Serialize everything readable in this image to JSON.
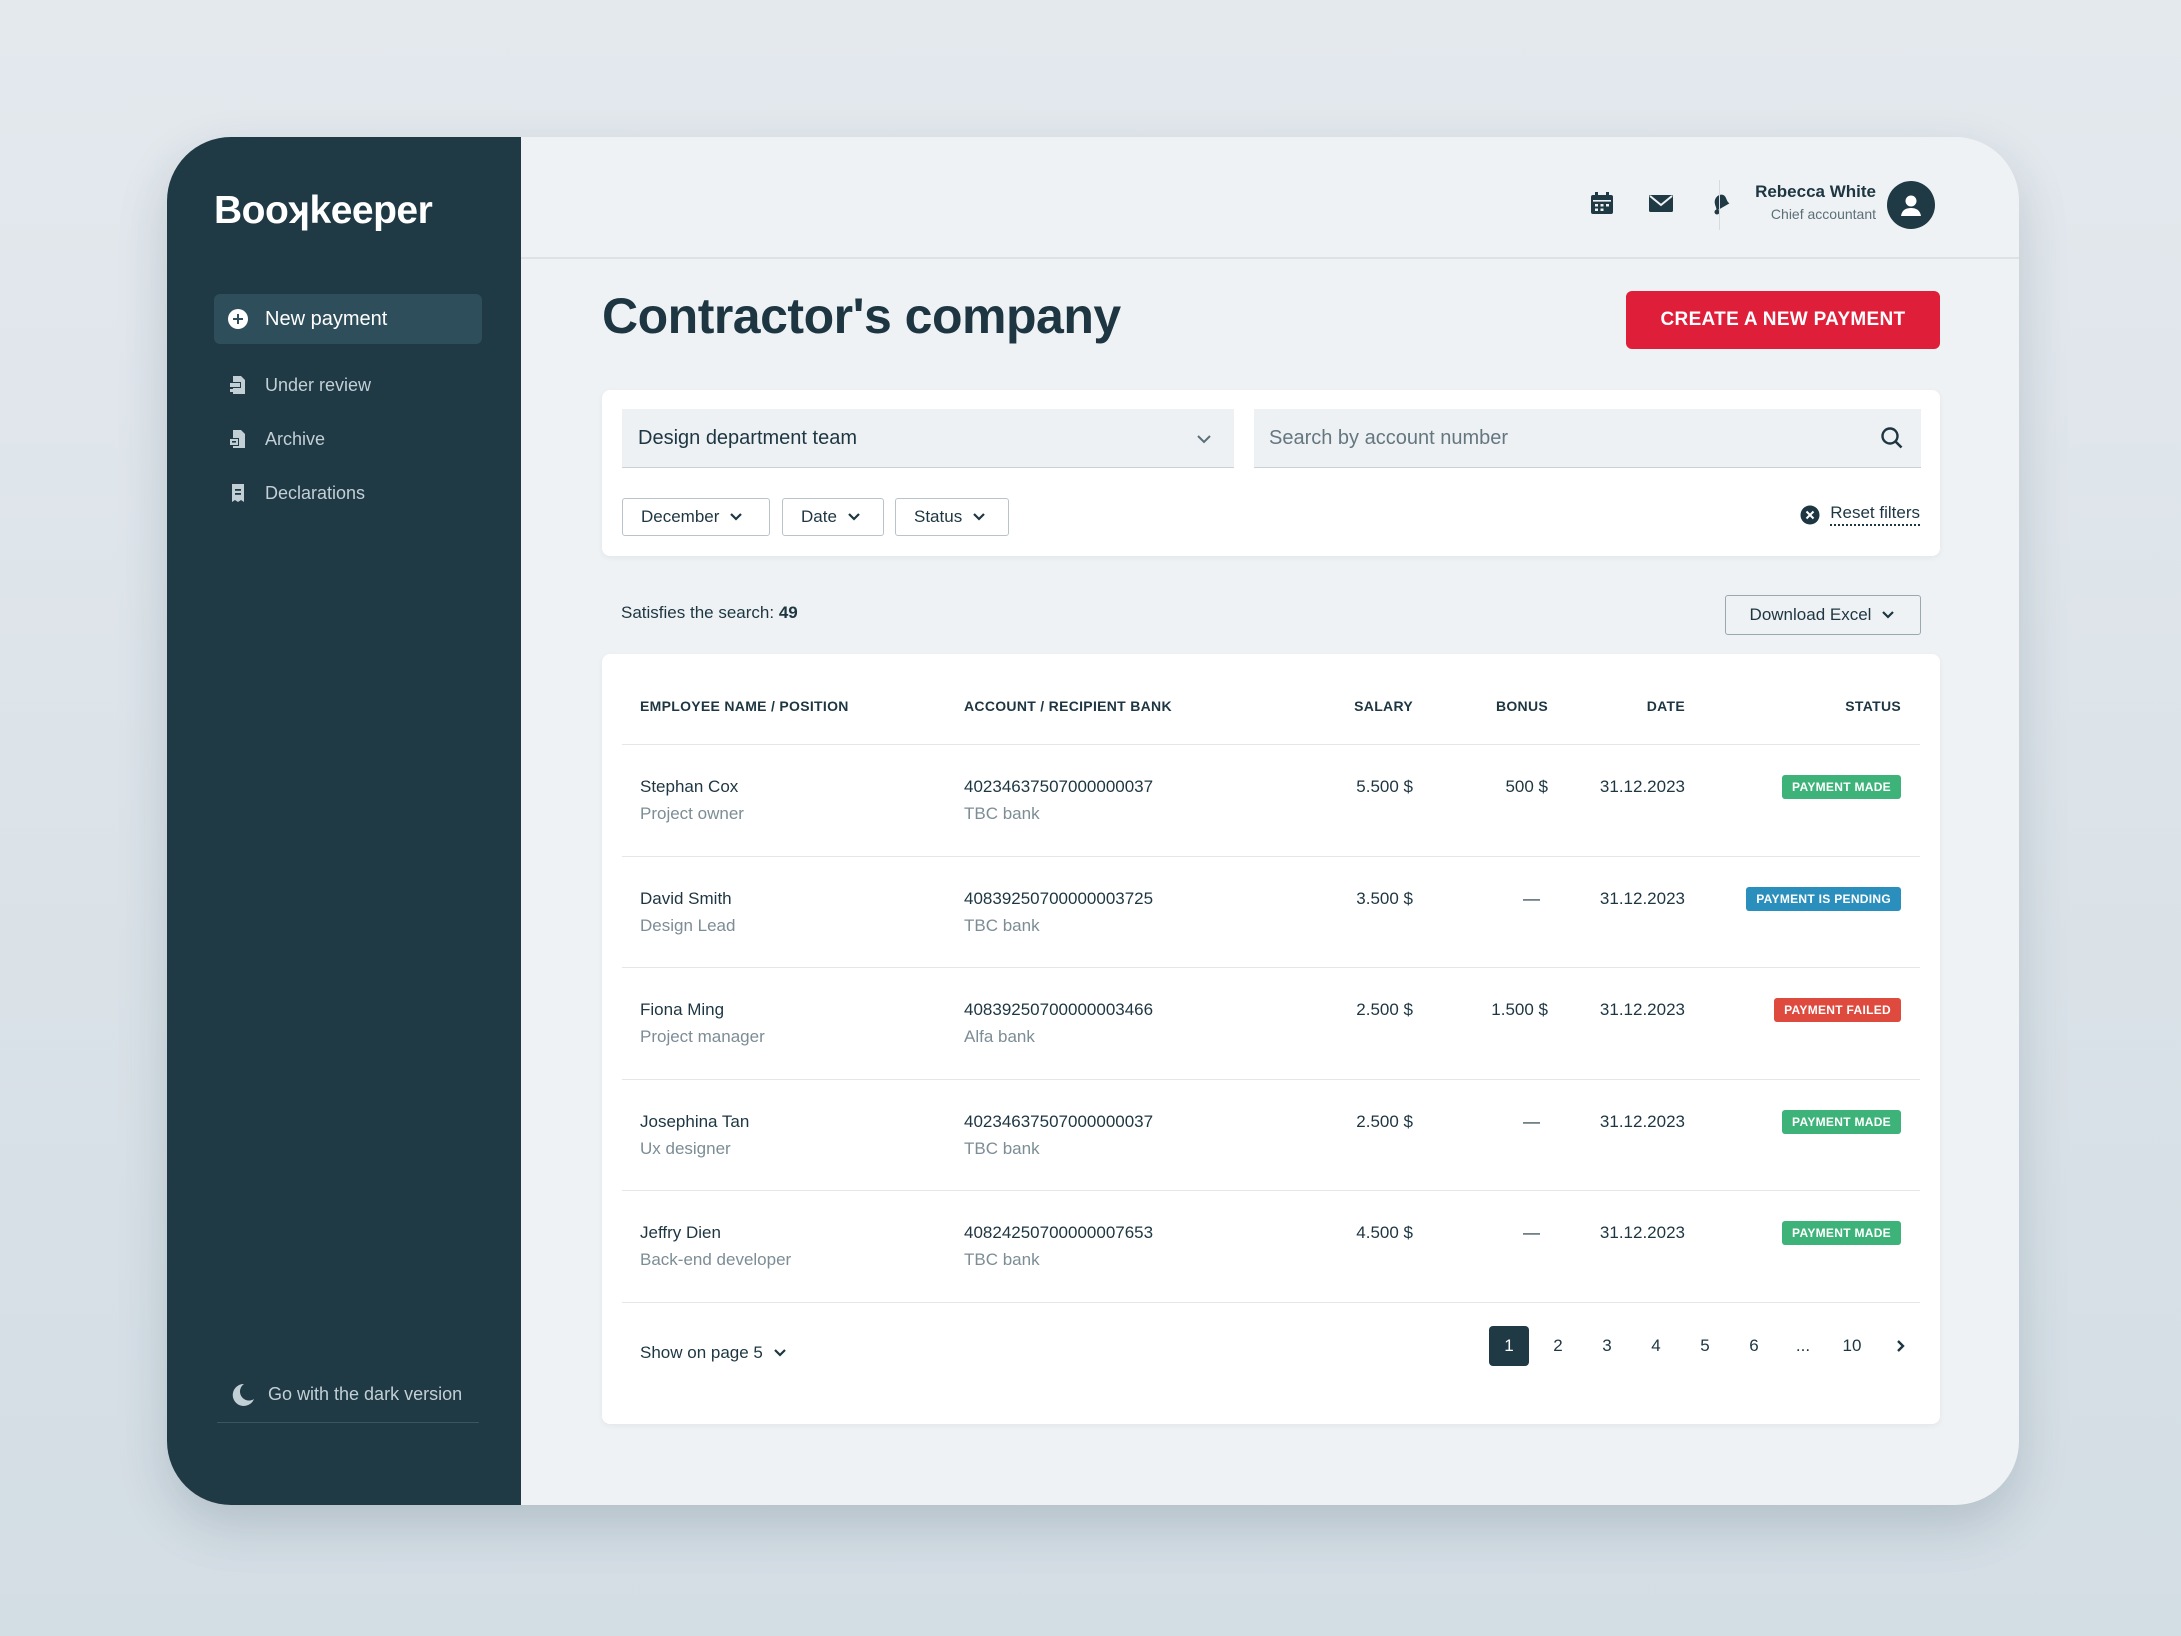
{
  "app": {
    "logo": "Booʞkeeper"
  },
  "sidebar": {
    "new_payment": "New payment",
    "items": [
      {
        "label": "Under review",
        "icon": "inbox-icon"
      },
      {
        "label": "Archive",
        "icon": "archive-icon"
      },
      {
        "label": "Declarations",
        "icon": "document-icon"
      }
    ],
    "dark_toggle": "Go with the dark version"
  },
  "header": {
    "icons": [
      "calendar-icon",
      "mail-icon",
      "bell-icon"
    ],
    "user_name": "Rebecca White",
    "user_role": "Chief accountant"
  },
  "main": {
    "title": "Contractor's company",
    "create_button": "CREATE A NEW PAYMENT"
  },
  "filters": {
    "team_select": "Design department team",
    "search_placeholder": "Search by account number",
    "chips": [
      "December",
      "Date",
      "Status"
    ],
    "reset": "Reset filters"
  },
  "results": {
    "label": "Satisfies the search:",
    "count": "49",
    "download": "Download Excel"
  },
  "table": {
    "headers": {
      "name": "EMPLOYEE NAME / POSITION",
      "account": "ACCOUNT / RECIPIENT BANK",
      "salary": "SALARY",
      "bonus": "BONUS",
      "date": "DATE",
      "status": "STATUS"
    },
    "rows": [
      {
        "name": "Stephan Cox",
        "position": "Project owner",
        "account": "40234637507000000037",
        "bank": "TBC bank",
        "salary": "5.500 $",
        "bonus": "500 $",
        "date": "31.12.2023",
        "status": "PAYMENT MADE",
        "status_color": "#3db37a"
      },
      {
        "name": "David Smith",
        "position": "Design Lead",
        "account": "40839250700000003725",
        "bank": "TBC bank",
        "salary": "3.500 $",
        "bonus": "—",
        "date": "31.12.2023",
        "status": "PAYMENT IS PENDING",
        "status_color": "#2a8fbd"
      },
      {
        "name": "Fiona Ming",
        "position": "Project manager",
        "account": "40839250700000003466",
        "bank": "Alfa bank",
        "salary": "2.500 $",
        "bonus": "1.500 $",
        "date": "31.12.2023",
        "status": "PAYMENT FAILED",
        "status_color": "#df4a3f"
      },
      {
        "name": "Josephina Tan",
        "position": "Ux designer",
        "account": "40234637507000000037",
        "bank": "TBC bank",
        "salary": "2.500 $",
        "bonus": "—",
        "date": "31.12.2023",
        "status": "PAYMENT MADE",
        "status_color": "#3db37a"
      },
      {
        "name": "Jeffry Dien",
        "position": "Back-end developer",
        "account": "40824250700000007653",
        "bank": "TBC bank",
        "salary": "4.500 $",
        "bonus": "—",
        "date": "31.12.2023",
        "status": "PAYMENT MADE",
        "status_color": "#3db37a"
      }
    ]
  },
  "pagination": {
    "show_on_page": "Show on page 5",
    "pages": [
      "1",
      "2",
      "3",
      "4",
      "5",
      "6",
      "...",
      "10"
    ],
    "current": "1"
  },
  "colors": {
    "sidebar": "#1f3945",
    "accent": "#df1f3a",
    "made": "#3db37a",
    "pending": "#2a8fbd",
    "failed": "#df4a3f"
  }
}
